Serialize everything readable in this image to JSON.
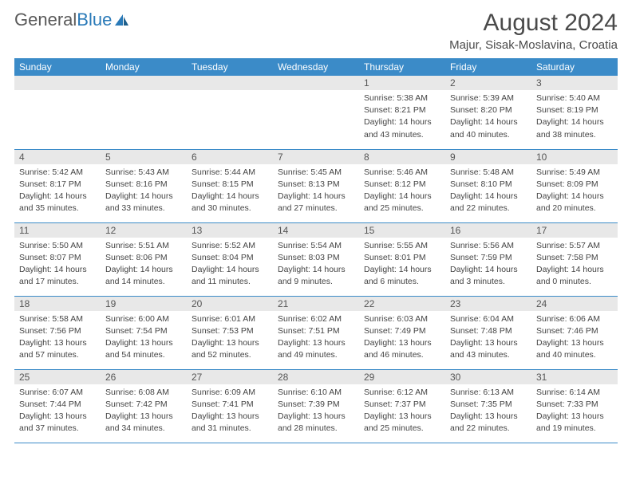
{
  "brand": {
    "part1": "General",
    "part2": "Blue"
  },
  "title": "August 2024",
  "location": "Majur, Sisak-Moslavina, Croatia",
  "colors": {
    "header_bg": "#3b8bc8",
    "header_text": "#ffffff",
    "daynum_bg": "#e8e8e8",
    "row_border": "#3b8bc8",
    "body_text": "#444444",
    "title_text": "#4a4a4a"
  },
  "day_headers": [
    "Sunday",
    "Monday",
    "Tuesday",
    "Wednesday",
    "Thursday",
    "Friday",
    "Saturday"
  ],
  "weeks": [
    [
      null,
      null,
      null,
      null,
      {
        "n": "1",
        "sr": "Sunrise: 5:38 AM",
        "ss": "Sunset: 8:21 PM",
        "d1": "Daylight: 14 hours",
        "d2": "and 43 minutes."
      },
      {
        "n": "2",
        "sr": "Sunrise: 5:39 AM",
        "ss": "Sunset: 8:20 PM",
        "d1": "Daylight: 14 hours",
        "d2": "and 40 minutes."
      },
      {
        "n": "3",
        "sr": "Sunrise: 5:40 AM",
        "ss": "Sunset: 8:19 PM",
        "d1": "Daylight: 14 hours",
        "d2": "and 38 minutes."
      }
    ],
    [
      {
        "n": "4",
        "sr": "Sunrise: 5:42 AM",
        "ss": "Sunset: 8:17 PM",
        "d1": "Daylight: 14 hours",
        "d2": "and 35 minutes."
      },
      {
        "n": "5",
        "sr": "Sunrise: 5:43 AM",
        "ss": "Sunset: 8:16 PM",
        "d1": "Daylight: 14 hours",
        "d2": "and 33 minutes."
      },
      {
        "n": "6",
        "sr": "Sunrise: 5:44 AM",
        "ss": "Sunset: 8:15 PM",
        "d1": "Daylight: 14 hours",
        "d2": "and 30 minutes."
      },
      {
        "n": "7",
        "sr": "Sunrise: 5:45 AM",
        "ss": "Sunset: 8:13 PM",
        "d1": "Daylight: 14 hours",
        "d2": "and 27 minutes."
      },
      {
        "n": "8",
        "sr": "Sunrise: 5:46 AM",
        "ss": "Sunset: 8:12 PM",
        "d1": "Daylight: 14 hours",
        "d2": "and 25 minutes."
      },
      {
        "n": "9",
        "sr": "Sunrise: 5:48 AM",
        "ss": "Sunset: 8:10 PM",
        "d1": "Daylight: 14 hours",
        "d2": "and 22 minutes."
      },
      {
        "n": "10",
        "sr": "Sunrise: 5:49 AM",
        "ss": "Sunset: 8:09 PM",
        "d1": "Daylight: 14 hours",
        "d2": "and 20 minutes."
      }
    ],
    [
      {
        "n": "11",
        "sr": "Sunrise: 5:50 AM",
        "ss": "Sunset: 8:07 PM",
        "d1": "Daylight: 14 hours",
        "d2": "and 17 minutes."
      },
      {
        "n": "12",
        "sr": "Sunrise: 5:51 AM",
        "ss": "Sunset: 8:06 PM",
        "d1": "Daylight: 14 hours",
        "d2": "and 14 minutes."
      },
      {
        "n": "13",
        "sr": "Sunrise: 5:52 AM",
        "ss": "Sunset: 8:04 PM",
        "d1": "Daylight: 14 hours",
        "d2": "and 11 minutes."
      },
      {
        "n": "14",
        "sr": "Sunrise: 5:54 AM",
        "ss": "Sunset: 8:03 PM",
        "d1": "Daylight: 14 hours",
        "d2": "and 9 minutes."
      },
      {
        "n": "15",
        "sr": "Sunrise: 5:55 AM",
        "ss": "Sunset: 8:01 PM",
        "d1": "Daylight: 14 hours",
        "d2": "and 6 minutes."
      },
      {
        "n": "16",
        "sr": "Sunrise: 5:56 AM",
        "ss": "Sunset: 7:59 PM",
        "d1": "Daylight: 14 hours",
        "d2": "and 3 minutes."
      },
      {
        "n": "17",
        "sr": "Sunrise: 5:57 AM",
        "ss": "Sunset: 7:58 PM",
        "d1": "Daylight: 14 hours",
        "d2": "and 0 minutes."
      }
    ],
    [
      {
        "n": "18",
        "sr": "Sunrise: 5:58 AM",
        "ss": "Sunset: 7:56 PM",
        "d1": "Daylight: 13 hours",
        "d2": "and 57 minutes."
      },
      {
        "n": "19",
        "sr": "Sunrise: 6:00 AM",
        "ss": "Sunset: 7:54 PM",
        "d1": "Daylight: 13 hours",
        "d2": "and 54 minutes."
      },
      {
        "n": "20",
        "sr": "Sunrise: 6:01 AM",
        "ss": "Sunset: 7:53 PM",
        "d1": "Daylight: 13 hours",
        "d2": "and 52 minutes."
      },
      {
        "n": "21",
        "sr": "Sunrise: 6:02 AM",
        "ss": "Sunset: 7:51 PM",
        "d1": "Daylight: 13 hours",
        "d2": "and 49 minutes."
      },
      {
        "n": "22",
        "sr": "Sunrise: 6:03 AM",
        "ss": "Sunset: 7:49 PM",
        "d1": "Daylight: 13 hours",
        "d2": "and 46 minutes."
      },
      {
        "n": "23",
        "sr": "Sunrise: 6:04 AM",
        "ss": "Sunset: 7:48 PM",
        "d1": "Daylight: 13 hours",
        "d2": "and 43 minutes."
      },
      {
        "n": "24",
        "sr": "Sunrise: 6:06 AM",
        "ss": "Sunset: 7:46 PM",
        "d1": "Daylight: 13 hours",
        "d2": "and 40 minutes."
      }
    ],
    [
      {
        "n": "25",
        "sr": "Sunrise: 6:07 AM",
        "ss": "Sunset: 7:44 PM",
        "d1": "Daylight: 13 hours",
        "d2": "and 37 minutes."
      },
      {
        "n": "26",
        "sr": "Sunrise: 6:08 AM",
        "ss": "Sunset: 7:42 PM",
        "d1": "Daylight: 13 hours",
        "d2": "and 34 minutes."
      },
      {
        "n": "27",
        "sr": "Sunrise: 6:09 AM",
        "ss": "Sunset: 7:41 PM",
        "d1": "Daylight: 13 hours",
        "d2": "and 31 minutes."
      },
      {
        "n": "28",
        "sr": "Sunrise: 6:10 AM",
        "ss": "Sunset: 7:39 PM",
        "d1": "Daylight: 13 hours",
        "d2": "and 28 minutes."
      },
      {
        "n": "29",
        "sr": "Sunrise: 6:12 AM",
        "ss": "Sunset: 7:37 PM",
        "d1": "Daylight: 13 hours",
        "d2": "and 25 minutes."
      },
      {
        "n": "30",
        "sr": "Sunrise: 6:13 AM",
        "ss": "Sunset: 7:35 PM",
        "d1": "Daylight: 13 hours",
        "d2": "and 22 minutes."
      },
      {
        "n": "31",
        "sr": "Sunrise: 6:14 AM",
        "ss": "Sunset: 7:33 PM",
        "d1": "Daylight: 13 hours",
        "d2": "and 19 minutes."
      }
    ]
  ]
}
